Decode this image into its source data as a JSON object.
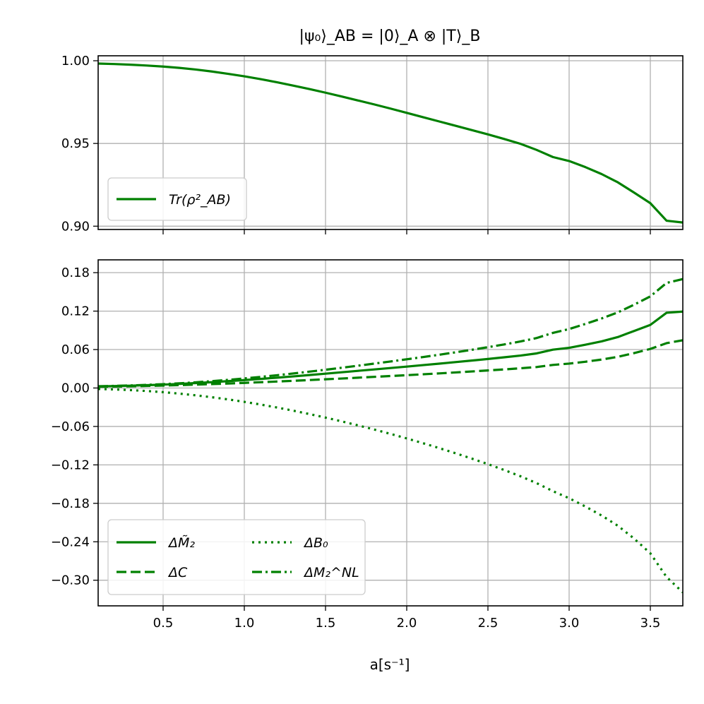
{
  "title": "|ψ₀⟩_AB = |0⟩_A ⊗ |T⟩_B",
  "xlabel": "a[s⁻¹]",
  "colors": {
    "series": "#008000",
    "grid": "#b0b0b0",
    "frame": "#000000"
  },
  "chart_data": [
    {
      "type": "line",
      "panel": "top",
      "xlim": [
        0.1,
        3.7
      ],
      "ylim": [
        0.898,
        1.003
      ],
      "yticks": [
        0.9,
        0.95,
        1.0
      ],
      "ytick_labels": [
        "0.90",
        "0.95",
        "1.00"
      ],
      "xticks": [
        0.5,
        1.0,
        1.5,
        2.0,
        2.5,
        3.0,
        3.5
      ],
      "grid": true,
      "legend_position": "lower-left",
      "series": [
        {
          "name": "Tr(ρ²_AB)",
          "legend_label": "Tr(ρ²_AB)",
          "style": "solid",
          "x": [
            0.1,
            0.2,
            0.3,
            0.4,
            0.5,
            0.6,
            0.7,
            0.8,
            0.9,
            1.0,
            1.1,
            1.2,
            1.3,
            1.4,
            1.5,
            1.6,
            1.7,
            1.8,
            1.9,
            2.0,
            2.1,
            2.2,
            2.3,
            2.4,
            2.5,
            2.6,
            2.7,
            2.8,
            2.9,
            3.0,
            3.1,
            3.2,
            3.3,
            3.4,
            3.5,
            3.6,
            3.7
          ],
          "values": [
            0.9983,
            0.998,
            0.9976,
            0.9971,
            0.9965,
            0.9957,
            0.9947,
            0.9935,
            0.9921,
            0.9906,
            0.9889,
            0.987,
            0.985,
            0.9829,
            0.9807,
            0.9784,
            0.976,
            0.9736,
            0.9711,
            0.9685,
            0.9659,
            0.9633,
            0.9607,
            0.9581,
            0.9555,
            0.9527,
            0.9498,
            0.9461,
            0.9418,
            0.9394,
            0.9357,
            0.9315,
            0.9265,
            0.9203,
            0.9139,
            0.9033,
            0.9022
          ]
        }
      ]
    },
    {
      "type": "line",
      "panel": "bottom",
      "xlim": [
        0.1,
        3.7
      ],
      "ylim": [
        -0.34,
        0.2
      ],
      "yticks": [
        0.18,
        0.12,
        0.06,
        0.0,
        -0.06,
        -0.12,
        -0.18,
        -0.24,
        -0.3
      ],
      "ytick_labels": [
        "0.18",
        "0.12",
        "0.06",
        "0.00",
        "−0.06",
        "−0.12",
        "−0.18",
        "−0.24",
        "−0.30"
      ],
      "xticks": [
        0.5,
        1.0,
        1.5,
        2.0,
        2.5,
        3.0,
        3.5
      ],
      "xtick_labels": [
        "0.5",
        "1.0",
        "1.5",
        "2.0",
        "2.5",
        "3.0",
        "3.5"
      ],
      "grid": true,
      "legend_position": "lower-left",
      "legend_columns": 2,
      "series": [
        {
          "name": "ΔM̃₂",
          "legend_label": "ΔM̃₂",
          "style": "solid",
          "x": [
            0.1,
            0.2,
            0.3,
            0.4,
            0.5,
            0.6,
            0.7,
            0.8,
            0.9,
            1.0,
            1.1,
            1.2,
            1.3,
            1.4,
            1.5,
            1.6,
            1.7,
            1.8,
            1.9,
            2.0,
            2.1,
            2.2,
            2.3,
            2.4,
            2.5,
            2.6,
            2.7,
            2.8,
            2.9,
            3.0,
            3.1,
            3.2,
            3.3,
            3.4,
            3.5,
            3.6,
            3.7
          ],
          "values": [
            0.0025,
            0.003,
            0.0036,
            0.0044,
            0.0053,
            0.0064,
            0.0077,
            0.0091,
            0.0107,
            0.0124,
            0.0142,
            0.0161,
            0.0181,
            0.0202,
            0.0224,
            0.0246,
            0.0268,
            0.029,
            0.0312,
            0.0334,
            0.0357,
            0.038,
            0.0404,
            0.0428,
            0.0453,
            0.0479,
            0.0506,
            0.054,
            0.0598,
            0.0627,
            0.0675,
            0.0728,
            0.0795,
            0.089,
            0.0985,
            0.1174,
            0.1193
          ]
        },
        {
          "name": "ΔC",
          "legend_label": "ΔC",
          "style": "dashed",
          "x": [
            0.1,
            0.2,
            0.3,
            0.4,
            0.5,
            0.6,
            0.7,
            0.8,
            0.9,
            1.0,
            1.1,
            1.2,
            1.3,
            1.4,
            1.5,
            1.6,
            1.7,
            1.8,
            1.9,
            2.0,
            2.1,
            2.2,
            2.3,
            2.4,
            2.5,
            2.6,
            2.7,
            2.8,
            2.9,
            3.0,
            3.1,
            3.2,
            3.3,
            3.4,
            3.5,
            3.6,
            3.7
          ],
          "values": [
            0.002,
            0.0023,
            0.0027,
            0.0032,
            0.0038,
            0.0045,
            0.0053,
            0.0061,
            0.007,
            0.008,
            0.009,
            0.0101,
            0.0112,
            0.0124,
            0.0136,
            0.0148,
            0.0161,
            0.0174,
            0.0187,
            0.02,
            0.0214,
            0.0228,
            0.0243,
            0.0258,
            0.0274,
            0.029,
            0.0308,
            0.0327,
            0.036,
            0.0381,
            0.041,
            0.0444,
            0.0486,
            0.0545,
            0.061,
            0.07,
            0.0745
          ]
        },
        {
          "name": "ΔB₀",
          "legend_label": "ΔB₀",
          "style": "dotted",
          "x": [
            0.1,
            0.2,
            0.3,
            0.4,
            0.5,
            0.6,
            0.7,
            0.8,
            0.9,
            1.0,
            1.1,
            1.2,
            1.3,
            1.4,
            1.5,
            1.6,
            1.7,
            1.8,
            1.9,
            2.0,
            2.1,
            2.2,
            2.3,
            2.4,
            2.5,
            2.6,
            2.7,
            2.8,
            2.9,
            3.0,
            3.1,
            3.2,
            3.3,
            3.4,
            3.5,
            3.6,
            3.7
          ],
          "values": [
            -0.0015,
            -0.0022,
            -0.0033,
            -0.0047,
            -0.0065,
            -0.0088,
            -0.0114,
            -0.0144,
            -0.0178,
            -0.0216,
            -0.0258,
            -0.0304,
            -0.0353,
            -0.0406,
            -0.0462,
            -0.0521,
            -0.0583,
            -0.0648,
            -0.0716,
            -0.0787,
            -0.0861,
            -0.0938,
            -0.1018,
            -0.1101,
            -0.1188,
            -0.128,
            -0.1377,
            -0.1485,
            -0.161,
            -0.172,
            -0.185,
            -0.199,
            -0.215,
            -0.235,
            -0.258,
            -0.295,
            -0.319
          ]
        },
        {
          "name": "ΔM₂^NL",
          "legend_label": "ΔM₂^NL",
          "style": "dashdot",
          "x": [
            0.1,
            0.2,
            0.3,
            0.4,
            0.5,
            0.6,
            0.7,
            0.8,
            0.9,
            1.0,
            1.1,
            1.2,
            1.3,
            1.4,
            1.5,
            1.6,
            1.7,
            1.8,
            1.9,
            2.0,
            2.1,
            2.2,
            2.3,
            2.4,
            2.5,
            2.6,
            2.7,
            2.8,
            2.9,
            3.0,
            3.1,
            3.2,
            3.3,
            3.4,
            3.5,
            3.6,
            3.7
          ],
          "values": [
            0.0028,
            0.0033,
            0.004,
            0.0049,
            0.006,
            0.0073,
            0.0089,
            0.0107,
            0.0127,
            0.0149,
            0.0173,
            0.0199,
            0.0226,
            0.0255,
            0.0285,
            0.0316,
            0.0348,
            0.0381,
            0.0414,
            0.0448,
            0.0483,
            0.0519,
            0.0557,
            0.0596,
            0.0637,
            0.068,
            0.0726,
            0.078,
            0.086,
            0.092,
            0.1,
            0.1085,
            0.118,
            0.13,
            0.143,
            0.164,
            0.17
          ]
        }
      ]
    }
  ]
}
